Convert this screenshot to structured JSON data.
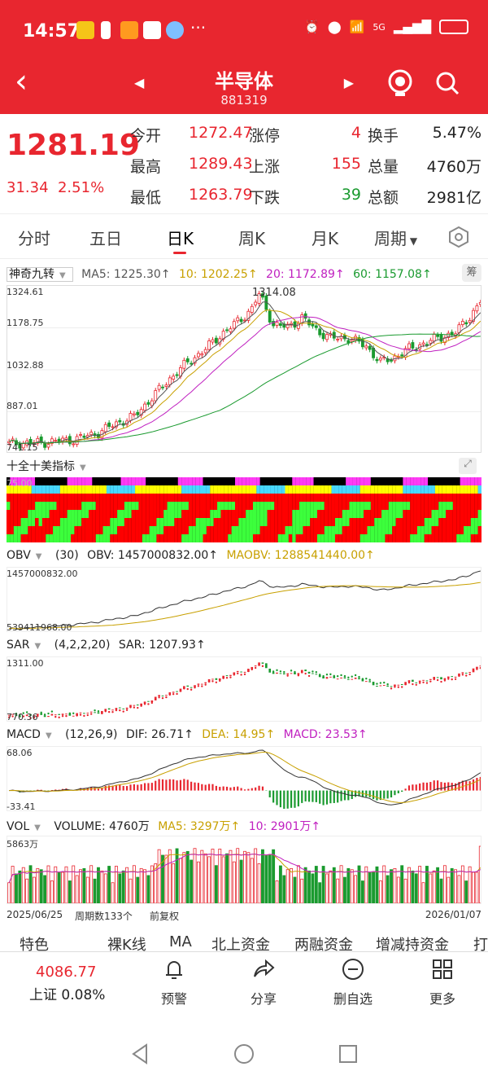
{
  "status": {
    "time": "14:57",
    "network": "5G"
  },
  "nav": {
    "title": "半导体",
    "code": "881319"
  },
  "quote": {
    "price": "1281.19",
    "change": "31.34",
    "change_pct": "2.51%",
    "open_label": "今开",
    "open": "1272.47",
    "high_label": "最高",
    "high": "1289.43",
    "low_label": "最低",
    "low": "1263.79",
    "limit_up_label": "涨停",
    "limit_up": "4",
    "rise_label": "上涨",
    "rise": "155",
    "fall_label": "下跌",
    "fall": "39",
    "turnover_label": "换手",
    "turnover": "5.47%",
    "volume_label": "总量",
    "volume": "4760万",
    "amount_label": "总额",
    "amount": "2981亿"
  },
  "tabs": [
    "分时",
    "五日",
    "日K",
    "周K",
    "月K",
    "周期"
  ],
  "kline": {
    "indicator": "神奇九转",
    "ma5": "MA5: 1225.30↑",
    "ma10": "10: 1202.25↑",
    "ma20": "20: 1172.89↑",
    "ma60": "60: 1157.08↑",
    "chip": "筹",
    "y_labels": [
      "1324.61",
      "1178.75",
      "1032.88",
      "887.01",
      "741.15"
    ],
    "peak": "1314.08"
  },
  "panel2": {
    "name": "十全十美指标",
    "top_label": "75.00"
  },
  "obv": {
    "name": "OBV",
    "param": "(30)",
    "obv": "OBV: 1457000832.00↑",
    "maobv": "MAOBV: 1288541440.00↑",
    "hi": "1457000832.00",
    "lo": "539411968.00"
  },
  "sar": {
    "name": "SAR",
    "param": "(4,2,2,20)",
    "value": "SAR: 1207.93↑",
    "hi": "1311.00",
    "lo": "770.36"
  },
  "macd": {
    "name": "MACD",
    "param": "(12,26,9)",
    "dif": "DIF: 26.71↑",
    "dea": "DEA: 14.95↑",
    "macd": "MACD: 23.53↑",
    "hi": "68.06",
    "lo": "-33.41"
  },
  "vol": {
    "name": "VOL",
    "volume": "VOLUME: 4760万",
    "ma5": "MA5: 3297万↑",
    "ma10": "10: 2901万↑",
    "hi": "5863万"
  },
  "range": {
    "start": "2025/06/25",
    "count": "周期数133个",
    "adjust": "前复权",
    "end": "2026/01/07"
  },
  "subtabs": [
    "特色",
    "裸K线",
    "MA",
    "北上资金",
    "两融资金",
    "增减持资金",
    "打"
  ],
  "toolbar": {
    "index_value": "4086.77",
    "index_label": "上证 0.08%",
    "alert": "预警",
    "share": "分享",
    "remove": "删自选",
    "more": "更多"
  },
  "chart_data": {
    "type": "candlestick",
    "title": "半导体 日K",
    "x_start": "2025/06/25",
    "x_end": "2026/01/07",
    "periods": 133,
    "ylim": [
      741.15,
      1324.61
    ],
    "y_ticks": [
      741.15,
      887.01,
      1032.88,
      1178.75,
      1324.61
    ],
    "peak": 1314.08,
    "last_close": 1281.19,
    "ma": {
      "MA5": 1225.3,
      "MA10": 1202.25,
      "MA20": 1172.89,
      "MA60": 1157.08
    },
    "close_trajectory": [
      [
        0,
        760
      ],
      [
        10,
        765
      ],
      [
        18,
        775
      ],
      [
        25,
        800
      ],
      [
        30,
        835
      ],
      [
        35,
        860
      ],
      [
        40,
        930
      ],
      [
        45,
        1000
      ],
      [
        50,
        1060
      ],
      [
        55,
        1110
      ],
      [
        60,
        1170
      ],
      [
        65,
        1220
      ],
      [
        68,
        1260
      ],
      [
        70,
        1314.08
      ],
      [
        74,
        1200
      ],
      [
        78,
        1190
      ],
      [
        82,
        1225
      ],
      [
        86,
        1180
      ],
      [
        90,
        1150
      ],
      [
        95,
        1150
      ],
      [
        100,
        1120
      ],
      [
        104,
        1060
      ],
      [
        108,
        1080
      ],
      [
        112,
        1110
      ],
      [
        116,
        1130
      ],
      [
        120,
        1150
      ],
      [
        125,
        1170
      ],
      [
        129,
        1230
      ],
      [
        132,
        1281.19
      ]
    ]
  }
}
